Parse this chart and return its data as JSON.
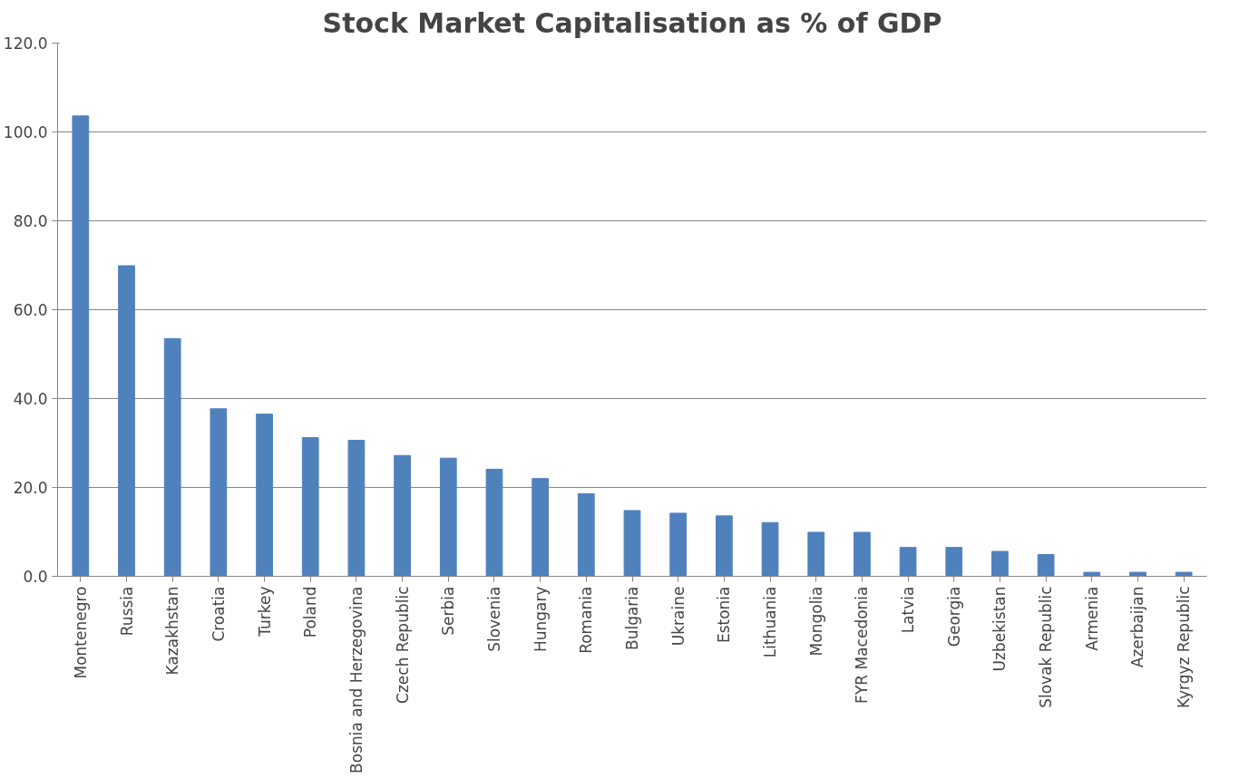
{
  "chart_data": {
    "type": "bar",
    "title": "Stock Market Capitalisation as % of GDP",
    "categories": [
      "Montenegro",
      "Russia",
      "Kazakhstan",
      "Croatia",
      "Turkey",
      "Poland",
      "Bosnia and Herzegovina",
      "Czech Republic",
      "Serbia",
      "Slovenia",
      "Hungary",
      "Romania",
      "Bulgaria",
      "Ukraine",
      "Estonia",
      "Lithuania",
      "Mongolia",
      "FYR Macedonia",
      "Latvia",
      "Georgia",
      "Uzbekistan",
      "Slovak Republic",
      "Armenia",
      "Azerbaijan",
      "Kyrgyz Republic"
    ],
    "values": [
      103.6,
      69.9,
      53.5,
      37.7,
      36.5,
      31.2,
      30.6,
      27.2,
      26.6,
      24.1,
      22.0,
      18.6,
      14.8,
      14.2,
      13.6,
      12.1,
      9.9,
      9.9,
      6.5,
      6.5,
      5.6,
      4.9,
      0.9,
      0.9,
      0.9
    ],
    "color": "#4f81bd",
    "ylim": [
      0,
      120
    ],
    "yticks": [
      {
        "value": 0,
        "label": "0.0"
      },
      {
        "value": 20,
        "label": "20.0"
      },
      {
        "value": 40,
        "label": "40.0"
      },
      {
        "value": 60,
        "label": "60.0"
      },
      {
        "value": 80,
        "label": "80.0"
      },
      {
        "value": 100,
        "label": "100.0"
      },
      {
        "value": 120,
        "label": "120.0"
      }
    ],
    "grid": "y"
  }
}
